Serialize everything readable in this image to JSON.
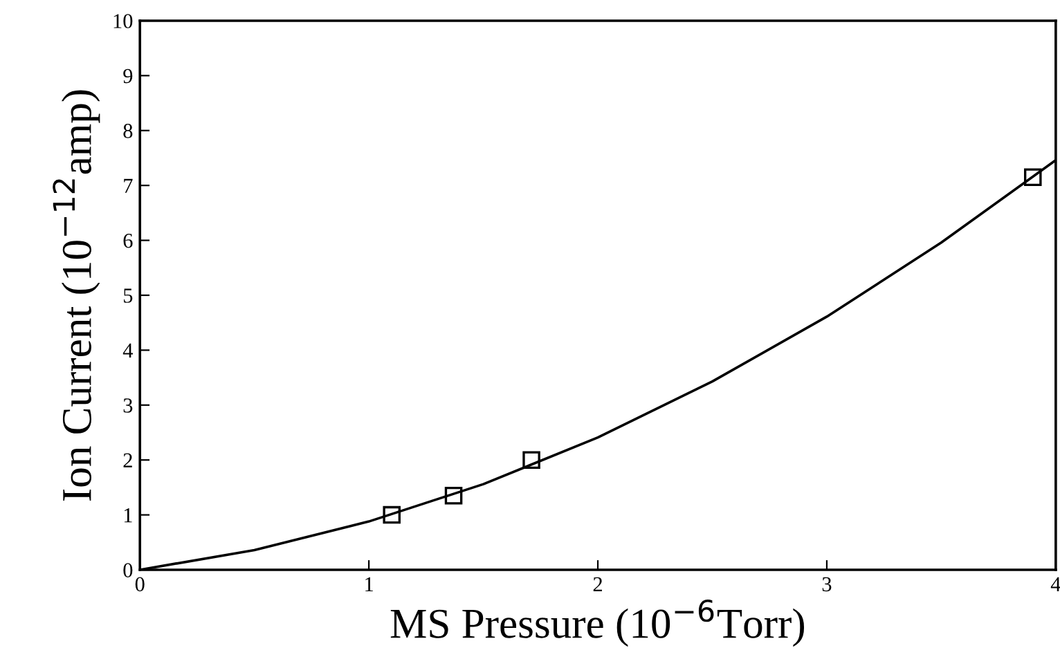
{
  "chart_data": {
    "type": "scatter",
    "xlabel": "MS Pressure (10$^{−6}$Torr)",
    "ylabel": "Ion Current (10$^{−12}$amp)",
    "xlim": [
      0,
      4
    ],
    "ylim": [
      0,
      10
    ],
    "xticks": [
      0,
      1,
      2,
      3,
      4
    ],
    "yticks": [
      0,
      1,
      2,
      3,
      4,
      5,
      6,
      7,
      8,
      9,
      10
    ],
    "grid": false,
    "legend": false,
    "series": [
      {
        "color": "#000000",
        "marker": "square",
        "x": [
          1.1,
          1.37,
          1.71,
          3.9
        ],
        "values": [
          1.0,
          1.35,
          2.0,
          7.15
        ]
      },
      {
        "type": "line",
        "color": "#000000",
        "marker": "none",
        "line_style": "solid",
        "x": [
          0,
          0.5,
          1,
          1.5,
          2,
          2.5,
          3,
          3.5,
          4
        ],
        "values": [
          0,
          0.36,
          0.88,
          1.56,
          2.41,
          3.43,
          4.61,
          5.96,
          7.46
        ]
      }
    ]
  }
}
